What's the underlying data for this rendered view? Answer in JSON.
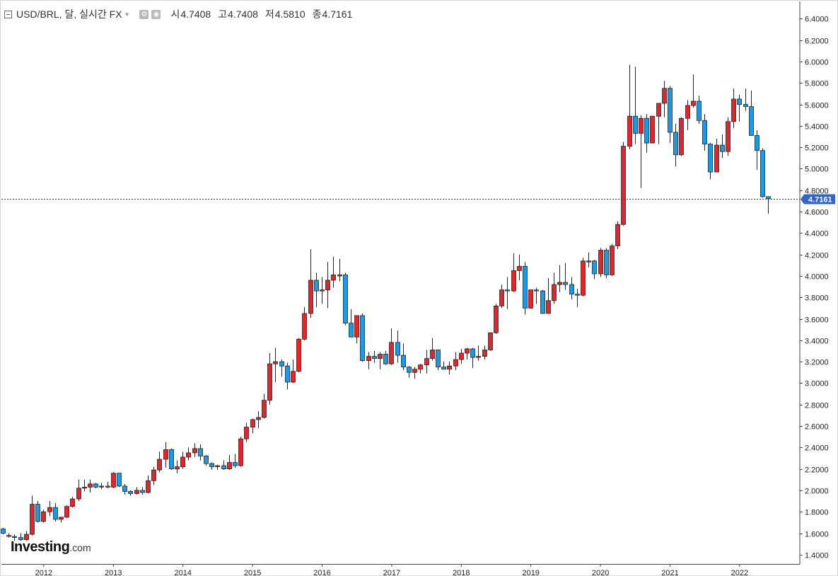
{
  "header": {
    "symbol": "USD/BRL,",
    "timeframe": "달,",
    "feed": "실시간 FX",
    "open_label": "시",
    "open_value": "4.7408",
    "high_label": "고",
    "high_value": "4.7408",
    "low_label": "저",
    "low_value": "4.5810",
    "close_label": "종",
    "close_value": "4.7161"
  },
  "logo": {
    "brand": "Investing",
    "suffix": ".com"
  },
  "colors": {
    "up": "#e0272d",
    "down": "#1f9ae0",
    "last_line": "#1b3c8f",
    "tag_bg": "#2f66c8"
  },
  "current_price_label": "4.7161",
  "chart_data": {
    "type": "candlestick",
    "x_labels": [
      "2012",
      "2013",
      "2014",
      "2015",
      "2016",
      "2017",
      "2018",
      "2019",
      "2020",
      "2021",
      "2022"
    ],
    "y_tick_labels": [
      "6.4000",
      "6.2000",
      "6.0000",
      "5.8000",
      "5.6000",
      "5.4000",
      "5.2000",
      "5.0000",
      "4.8000",
      "4.6000",
      "4.4000",
      "4.2000",
      "4.0000",
      "3.8000",
      "3.6000",
      "3.4000",
      "3.2000",
      "3.0000",
      "2.8000",
      "2.6000",
      "2.4000",
      "2.2000",
      "2.0000",
      "1.8000",
      "1.6000",
      "1.4000"
    ],
    "y_ticks": [
      6.4,
      6.2,
      6.0,
      5.8,
      5.6,
      5.4,
      5.2,
      5.0,
      4.8,
      4.6,
      4.4,
      4.2,
      4.0,
      3.8,
      3.6,
      3.4,
      3.2,
      3.0,
      2.8,
      2.6,
      2.4,
      2.2,
      2.0,
      1.8,
      1.6,
      1.4
    ],
    "ylim": [
      1.3,
      6.49
    ],
    "last_close": 4.7161,
    "ohlc": [
      [
        1.64,
        1.65,
        1.59,
        1.6
      ],
      [
        1.58,
        1.6,
        1.56,
        1.57
      ],
      [
        1.57,
        1.59,
        1.53,
        1.56
      ],
      [
        1.56,
        1.6,
        1.53,
        1.54
      ],
      [
        1.54,
        1.62,
        1.53,
        1.59
      ],
      [
        1.59,
        1.95,
        1.58,
        1.87
      ],
      [
        1.87,
        1.9,
        1.7,
        1.71
      ],
      [
        1.71,
        1.82,
        1.7,
        1.8
      ],
      [
        1.8,
        1.9,
        1.76,
        1.84
      ],
      [
        1.84,
        1.88,
        1.71,
        1.73
      ],
      [
        1.73,
        1.75,
        1.7,
        1.75
      ],
      [
        1.75,
        1.86,
        1.74,
        1.85
      ],
      [
        1.85,
        1.94,
        1.84,
        1.92
      ],
      [
        1.92,
        2.1,
        1.9,
        2.02
      ],
      [
        2.02,
        2.1,
        1.99,
        2.03
      ],
      [
        2.03,
        2.1,
        1.98,
        2.06
      ],
      [
        2.06,
        2.07,
        2.02,
        2.03
      ],
      [
        2.03,
        2.07,
        2.01,
        2.04
      ],
      [
        2.04,
        2.08,
        2.02,
        2.03
      ],
      [
        2.03,
        2.17,
        2.02,
        2.16
      ],
      [
        2.16,
        2.16,
        2.03,
        2.04
      ],
      [
        2.04,
        2.06,
        1.96,
        1.99
      ],
      [
        1.99,
        2.0,
        1.95,
        1.97
      ],
      [
        1.97,
        2.03,
        1.96,
        2.0
      ],
      [
        2.0,
        2.03,
        1.96,
        1.98
      ],
      [
        1.98,
        2.14,
        1.97,
        2.09
      ],
      [
        2.09,
        2.22,
        2.05,
        2.19
      ],
      [
        2.19,
        2.36,
        2.17,
        2.29
      ],
      [
        2.29,
        2.45,
        2.21,
        2.38
      ],
      [
        2.38,
        2.39,
        2.19,
        2.2
      ],
      [
        2.2,
        2.28,
        2.16,
        2.22
      ],
      [
        2.22,
        2.36,
        2.2,
        2.31
      ],
      [
        2.31,
        2.4,
        2.28,
        2.35
      ],
      [
        2.35,
        2.44,
        2.31,
        2.39
      ],
      [
        2.39,
        2.43,
        2.28,
        2.32
      ],
      [
        2.32,
        2.33,
        2.23,
        2.25
      ],
      [
        2.25,
        2.26,
        2.19,
        2.22
      ],
      [
        2.22,
        2.24,
        2.19,
        2.23
      ],
      [
        2.23,
        2.28,
        2.19,
        2.2
      ],
      [
        2.2,
        2.33,
        2.19,
        2.26
      ],
      [
        2.26,
        2.34,
        2.21,
        2.23
      ],
      [
        2.23,
        2.5,
        2.22,
        2.48
      ],
      [
        2.48,
        2.63,
        2.45,
        2.59
      ],
      [
        2.59,
        2.67,
        2.53,
        2.66
      ],
      [
        2.66,
        2.74,
        2.58,
        2.68
      ],
      [
        2.68,
        2.9,
        2.67,
        2.84
      ],
      [
        2.84,
        3.28,
        2.8,
        3.18
      ],
      [
        3.18,
        3.33,
        3.01,
        3.2
      ],
      [
        3.2,
        3.22,
        3.06,
        3.16
      ],
      [
        3.16,
        3.19,
        2.94,
        3.01
      ],
      [
        3.01,
        3.22,
        3.0,
        3.11
      ],
      [
        3.11,
        3.42,
        3.1,
        3.41
      ],
      [
        3.41,
        3.71,
        3.4,
        3.65
      ],
      [
        3.65,
        4.25,
        3.61,
        3.96
      ],
      [
        3.96,
        4.03,
        3.71,
        3.86
      ],
      [
        3.86,
        3.99,
        3.74,
        3.87
      ],
      [
        3.87,
        4.13,
        3.7,
        3.96
      ],
      [
        3.96,
        4.18,
        3.89,
        4.01
      ],
      [
        4.01,
        4.16,
        3.95,
        4.01
      ],
      [
        4.01,
        4.03,
        3.54,
        3.56
      ],
      [
        3.56,
        3.69,
        3.43,
        3.43
      ],
      [
        3.43,
        3.63,
        3.37,
        3.63
      ],
      [
        3.63,
        3.65,
        3.2,
        3.21
      ],
      [
        3.21,
        3.29,
        3.13,
        3.25
      ],
      [
        3.25,
        3.3,
        3.19,
        3.23
      ],
      [
        3.23,
        3.29,
        3.13,
        3.27
      ],
      [
        3.27,
        3.3,
        3.17,
        3.18
      ],
      [
        3.18,
        3.51,
        3.17,
        3.38
      ],
      [
        3.38,
        3.49,
        3.19,
        3.26
      ],
      [
        3.26,
        3.37,
        3.12,
        3.15
      ],
      [
        3.15,
        3.16,
        3.05,
        3.1
      ],
      [
        3.1,
        3.15,
        3.04,
        3.13
      ],
      [
        3.13,
        3.18,
        3.09,
        3.17
      ],
      [
        3.17,
        3.31,
        3.09,
        3.23
      ],
      [
        3.23,
        3.42,
        3.21,
        3.31
      ],
      [
        3.31,
        3.31,
        3.12,
        3.15
      ],
      [
        3.15,
        3.2,
        3.13,
        3.13
      ],
      [
        3.13,
        3.2,
        3.08,
        3.16
      ],
      [
        3.16,
        3.29,
        3.12,
        3.22
      ],
      [
        3.22,
        3.32,
        3.18,
        3.28
      ],
      [
        3.28,
        3.33,
        3.22,
        3.32
      ],
      [
        3.32,
        3.33,
        3.14,
        3.24
      ],
      [
        3.24,
        3.35,
        3.21,
        3.25
      ],
      [
        3.25,
        3.35,
        3.22,
        3.31
      ],
      [
        3.31,
        3.47,
        3.3,
        3.47
      ],
      [
        3.47,
        3.74,
        3.46,
        3.72
      ],
      [
        3.72,
        3.92,
        3.7,
        3.87
      ],
      [
        3.87,
        3.99,
        3.69,
        3.86
      ],
      [
        3.86,
        4.21,
        3.85,
        4.05
      ],
      [
        4.05,
        4.2,
        3.96,
        4.09
      ],
      [
        4.09,
        4.13,
        3.64,
        3.7
      ],
      [
        3.7,
        3.86,
        3.72,
        3.87
      ],
      [
        3.87,
        3.89,
        3.74,
        3.86
      ],
      [
        3.86,
        3.87,
        3.66,
        3.65
      ],
      [
        3.65,
        3.98,
        3.65,
        3.77
      ],
      [
        3.77,
        4.03,
        3.74,
        3.92
      ],
      [
        3.92,
        4.1,
        3.85,
        3.94
      ],
      [
        3.94,
        4.12,
        3.87,
        3.92
      ],
      [
        3.92,
        3.99,
        3.78,
        3.83
      ],
      [
        3.83,
        3.88,
        3.71,
        3.82
      ],
      [
        3.82,
        4.17,
        3.81,
        4.14
      ],
      [
        4.14,
        4.22,
        4.08,
        4.14
      ],
      [
        4.14,
        4.15,
        3.97,
        4.02
      ],
      [
        4.02,
        4.26,
        3.99,
        4.24
      ],
      [
        4.24,
        4.26,
        3.98,
        4.01
      ],
      [
        4.01,
        4.3,
        4.0,
        4.28
      ],
      [
        4.28,
        4.51,
        4.25,
        4.48
      ],
      [
        4.48,
        5.25,
        4.47,
        5.21
      ],
      [
        5.21,
        5.97,
        5.18,
        5.49
      ],
      [
        5.49,
        5.95,
        5.23,
        5.33
      ],
      [
        5.33,
        5.5,
        4.82,
        5.47
      ],
      [
        5.47,
        5.51,
        5.15,
        5.24
      ],
      [
        5.24,
        5.49,
        5.24,
        5.49
      ],
      [
        5.49,
        5.6,
        5.23,
        5.61
      ],
      [
        5.61,
        5.82,
        5.48,
        5.75
      ],
      [
        5.75,
        5.77,
        5.24,
        5.34
      ],
      [
        5.34,
        5.42,
        5.02,
        5.13
      ],
      [
        5.13,
        5.48,
        5.12,
        5.47
      ],
      [
        5.47,
        5.64,
        5.36,
        5.59
      ],
      [
        5.59,
        5.88,
        5.57,
        5.63
      ],
      [
        5.63,
        5.68,
        5.42,
        5.45
      ],
      [
        5.45,
        5.51,
        5.17,
        5.23
      ],
      [
        5.23,
        5.24,
        4.9,
        4.97
      ],
      [
        4.97,
        5.28,
        4.98,
        5.22
      ],
      [
        5.22,
        5.32,
        5.1,
        5.16
      ],
      [
        5.16,
        5.48,
        5.12,
        5.44
      ],
      [
        5.44,
        5.75,
        5.38,
        5.65
      ],
      [
        5.65,
        5.69,
        5.44,
        5.6
      ],
      [
        5.6,
        5.75,
        5.54,
        5.58
      ],
      [
        5.58,
        5.73,
        5.31,
        5.31
      ],
      [
        5.31,
        5.36,
        4.99,
        5.17
      ],
      [
        5.17,
        5.19,
        4.73,
        4.74
      ],
      [
        4.74,
        4.74,
        4.58,
        4.72
      ]
    ]
  }
}
